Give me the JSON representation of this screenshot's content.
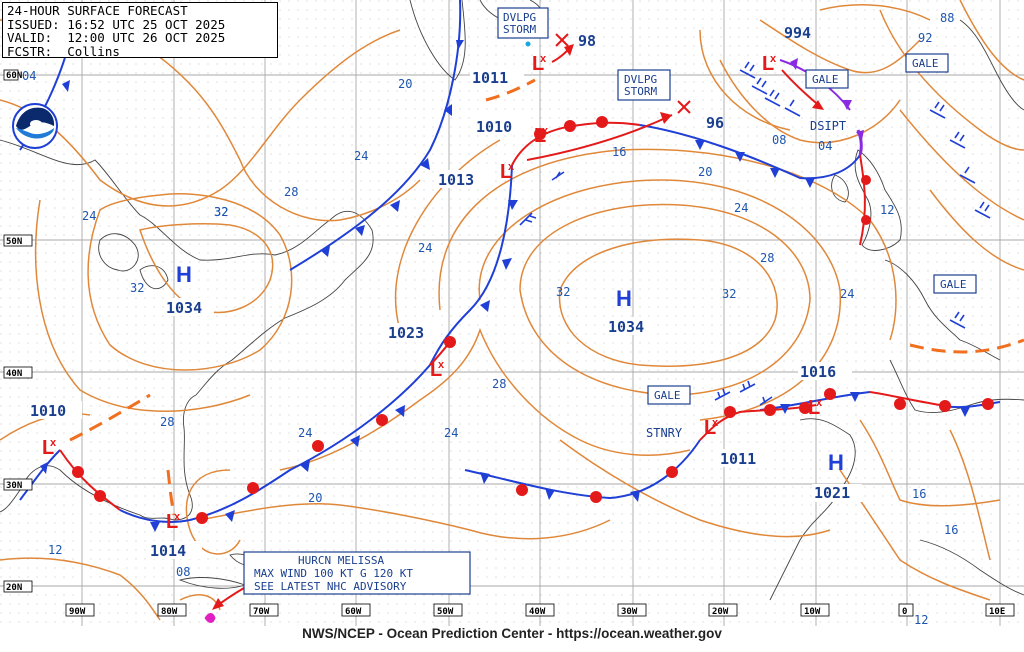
{
  "header": {
    "line1": "24-HOUR SURFACE FORECAST",
    "line2": "ISSUED: 16:52 UTC 25 OCT 2025",
    "line3": "VALID:  12:00 UTC 26 OCT 2025",
    "line4": "FCSTR:  Collins"
  },
  "footer_credit": "NWS/NCEP - Ocean Prediction Center - https://ocean.weather.gov",
  "logo_icon": "noaa-logo",
  "colors": {
    "isobar": "#e0883a",
    "cold_front": "#1f3fd6",
    "warm_front": "#e41a1a",
    "label": "#1a3f8f",
    "grid": "#b8b8b8",
    "occluded": "#8a2be2"
  },
  "lat_labels": [
    "60N",
    "50N",
    "40N",
    "30N",
    "20N"
  ],
  "lon_labels": [
    "90W",
    "80W",
    "70W",
    "60W",
    "50W",
    "40W",
    "30W",
    "20W",
    "10W",
    "0",
    "10E"
  ],
  "highs": [
    {
      "label": "H",
      "pressure": "1034"
    },
    {
      "label": "H",
      "pressure": "1034"
    },
    {
      "label": "H",
      "pressure": "1021"
    }
  ],
  "lows": [
    {
      "label": "994"
    },
    {
      "label": "1011"
    },
    {
      "label": "1010"
    },
    {
      "label": "1013"
    },
    {
      "label": "1023"
    },
    {
      "label": "1010"
    },
    {
      "label": "1014"
    },
    {
      "label": "1011"
    },
    {
      "label": "1016"
    },
    {
      "label": "98"
    },
    {
      "label": "96"
    }
  ],
  "boxed_labels": {
    "dvlpg_storm_1": [
      "DVLPG",
      "STORM"
    ],
    "dvlpg_storm_2": [
      "DVLPG",
      "STORM"
    ],
    "gale_1": "GALE",
    "gale_2": "GALE",
    "gale_3": "GALE",
    "gale_4": "GALE"
  },
  "text_labels": {
    "dsipt": "DSIPT",
    "stnry": "STNRY"
  },
  "hurricane_box": [
    "HURCN MELISSA",
    "MAX WIND 100 KT G 120 KT",
    "SEE LATEST NHC ADVISORY"
  ],
  "isobar_values": [
    "04",
    "20",
    "24",
    "28",
    "32",
    "24",
    "32",
    "24",
    "32",
    "28",
    "24",
    "20",
    "16",
    "08",
    "04",
    "12",
    "88",
    "92",
    "24",
    "28",
    "24",
    "20",
    "12",
    "08",
    "16",
    "16",
    "12",
    "32",
    "28"
  ]
}
